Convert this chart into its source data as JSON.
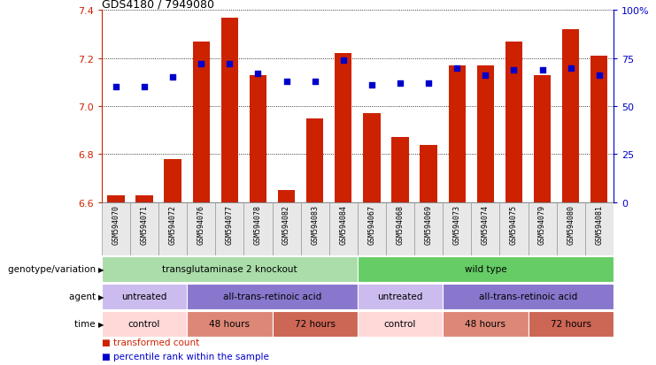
{
  "title": "GDS4180 / 7949080",
  "samples": [
    "GSM594070",
    "GSM594071",
    "GSM594072",
    "GSM594076",
    "GSM594077",
    "GSM594078",
    "GSM594082",
    "GSM594083",
    "GSM594084",
    "GSM594067",
    "GSM594068",
    "GSM594069",
    "GSM594073",
    "GSM594074",
    "GSM594075",
    "GSM594079",
    "GSM594080",
    "GSM594081"
  ],
  "bar_values": [
    6.63,
    6.63,
    6.78,
    7.27,
    7.37,
    7.13,
    6.65,
    6.95,
    7.22,
    6.97,
    6.87,
    6.84,
    7.17,
    7.17,
    7.27,
    7.13,
    7.32,
    7.21
  ],
  "percentile_values": [
    60,
    60,
    65,
    72,
    72,
    67,
    63,
    63,
    74,
    61,
    62,
    62,
    70,
    66,
    69,
    69,
    70,
    66
  ],
  "ymin": 6.6,
  "ymax": 7.4,
  "bar_color": "#cc2200",
  "percentile_color": "#0000cc",
  "genotype_groups": [
    {
      "label": "transglutaminase 2 knockout",
      "start": 0,
      "end": 9,
      "color": "#aaddaa"
    },
    {
      "label": "wild type",
      "start": 9,
      "end": 18,
      "color": "#66cc66"
    }
  ],
  "agent_groups": [
    {
      "label": "untreated",
      "start": 0,
      "end": 3,
      "color": "#ccbbee"
    },
    {
      "label": "all-trans-retinoic acid",
      "start": 3,
      "end": 9,
      "color": "#8877cc"
    },
    {
      "label": "untreated",
      "start": 9,
      "end": 12,
      "color": "#ccbbee"
    },
    {
      "label": "all-trans-retinoic acid",
      "start": 12,
      "end": 18,
      "color": "#8877cc"
    }
  ],
  "time_groups": [
    {
      "label": "control",
      "start": 0,
      "end": 3,
      "color": "#ffd8d8"
    },
    {
      "label": "48 hours",
      "start": 3,
      "end": 6,
      "color": "#dd8877"
    },
    {
      "label": "72 hours",
      "start": 6,
      "end": 9,
      "color": "#cc6655"
    },
    {
      "label": "control",
      "start": 9,
      "end": 12,
      "color": "#ffd8d8"
    },
    {
      "label": "48 hours",
      "start": 12,
      "end": 15,
      "color": "#dd8877"
    },
    {
      "label": "72 hours",
      "start": 15,
      "end": 18,
      "color": "#cc6655"
    }
  ],
  "row_labels": [
    "genotype/variation",
    "agent",
    "time"
  ],
  "legend_items": [
    {
      "label": "transformed count",
      "color": "#cc2200"
    },
    {
      "label": "percentile rank within the sample",
      "color": "#0000cc"
    }
  ],
  "right_yticks": [
    0,
    25,
    50,
    75,
    100
  ],
  "right_yticklabels": [
    "0",
    "25",
    "50",
    "75",
    "100%"
  ],
  "left_yticks": [
    6.6,
    6.8,
    7.0,
    7.2,
    7.4
  ]
}
